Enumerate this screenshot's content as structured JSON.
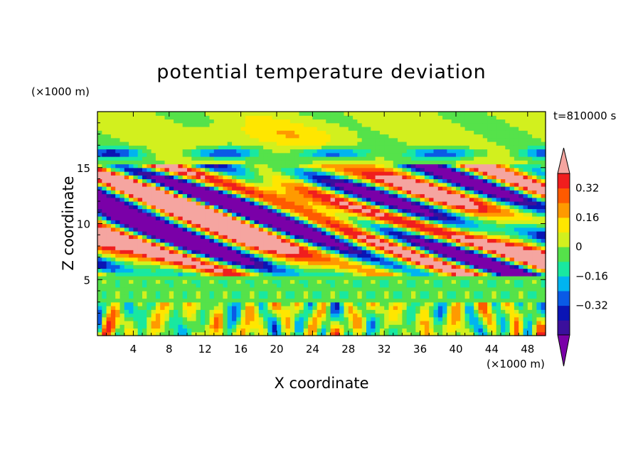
{
  "chart_data": {
    "type": "heatmap",
    "title": "potential temperature deviation",
    "xlabel": "X coordinate",
    "ylabel": "Z coordinate",
    "x_unit": "(×1000 m)",
    "y_unit": "(×1000 m)",
    "time_label": "t=810000 s",
    "xlim": [
      0,
      50
    ],
    "ylim": [
      0,
      20
    ],
    "xticks": [
      4,
      8,
      12,
      16,
      20,
      24,
      28,
      32,
      36,
      40,
      44,
      48
    ],
    "yticks": [
      5,
      10,
      15
    ],
    "colorbar": {
      "levels": [
        -0.48,
        -0.4,
        -0.32,
        -0.24,
        -0.16,
        -0.08,
        0,
        0.08,
        0.16,
        0.24,
        0.32,
        0.4
      ],
      "labels": [
        "0.32",
        "0.16",
        "0",
        "−0.16",
        "−0.32"
      ],
      "label_values": [
        0.32,
        0.16,
        0,
        -0.16,
        -0.32
      ],
      "colors": [
        "#7a00a8",
        "#3b0f9c",
        "#0a14b4",
        "#0a5ae6",
        "#00b4f0",
        "#19e8a0",
        "#55e24a",
        "#d2f01e",
        "#ffe600",
        "#ff9a00",
        "#ff5a00",
        "#f01e1e",
        "#f5a5a0"
      ],
      "extend": "both"
    },
    "grid": false
  }
}
